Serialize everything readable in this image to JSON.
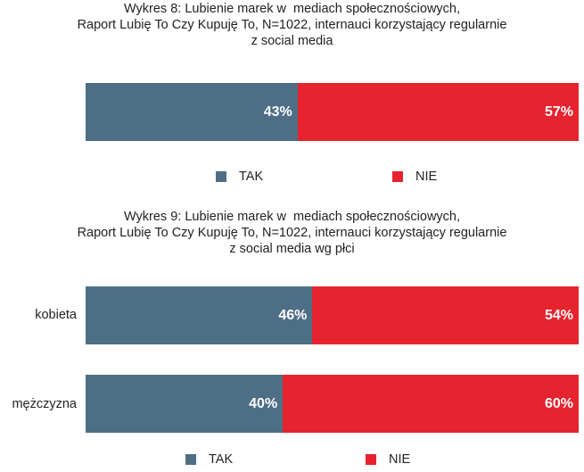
{
  "colors": {
    "tak": "#4e6e85",
    "nie": "#e5242f"
  },
  "chart_data": [
    {
      "type": "bar",
      "orientation": "horizontal",
      "stacked": true,
      "percent": true,
      "title_lines": [
        "Wykres 8: Lubienie marek w  mediach społecznościowych,",
        "Raport Lubię To Czy Kupuję To, N=1022, internauci korzystający regularnie",
        "z social media"
      ],
      "categories": [
        ""
      ],
      "series": [
        {
          "name": "TAK",
          "values": [
            43
          ],
          "labels": [
            "43%"
          ]
        },
        {
          "name": "NIE",
          "values": [
            57
          ],
          "labels": [
            "57%"
          ]
        }
      ],
      "legend": {
        "position": "bottom",
        "items": [
          "TAK",
          "NIE"
        ]
      }
    },
    {
      "type": "bar",
      "orientation": "horizontal",
      "stacked": true,
      "percent": true,
      "title_lines": [
        "Wykres 9: Lubienie marek w  mediach społecznościowych,",
        "Raport Lubię To Czy Kupuję To, N=1022, internauci korzystający regularnie",
        "z social media wg płci"
      ],
      "categories": [
        "kobieta",
        "mężczyzna"
      ],
      "series": [
        {
          "name": "TAK",
          "values": [
            46,
            40
          ],
          "labels": [
            "46%",
            "40%"
          ]
        },
        {
          "name": "NIE",
          "values": [
            54,
            60
          ],
          "labels": [
            "54%",
            "60%"
          ]
        }
      ],
      "legend": {
        "position": "bottom",
        "items": [
          "TAK",
          "NIE"
        ]
      }
    }
  ]
}
